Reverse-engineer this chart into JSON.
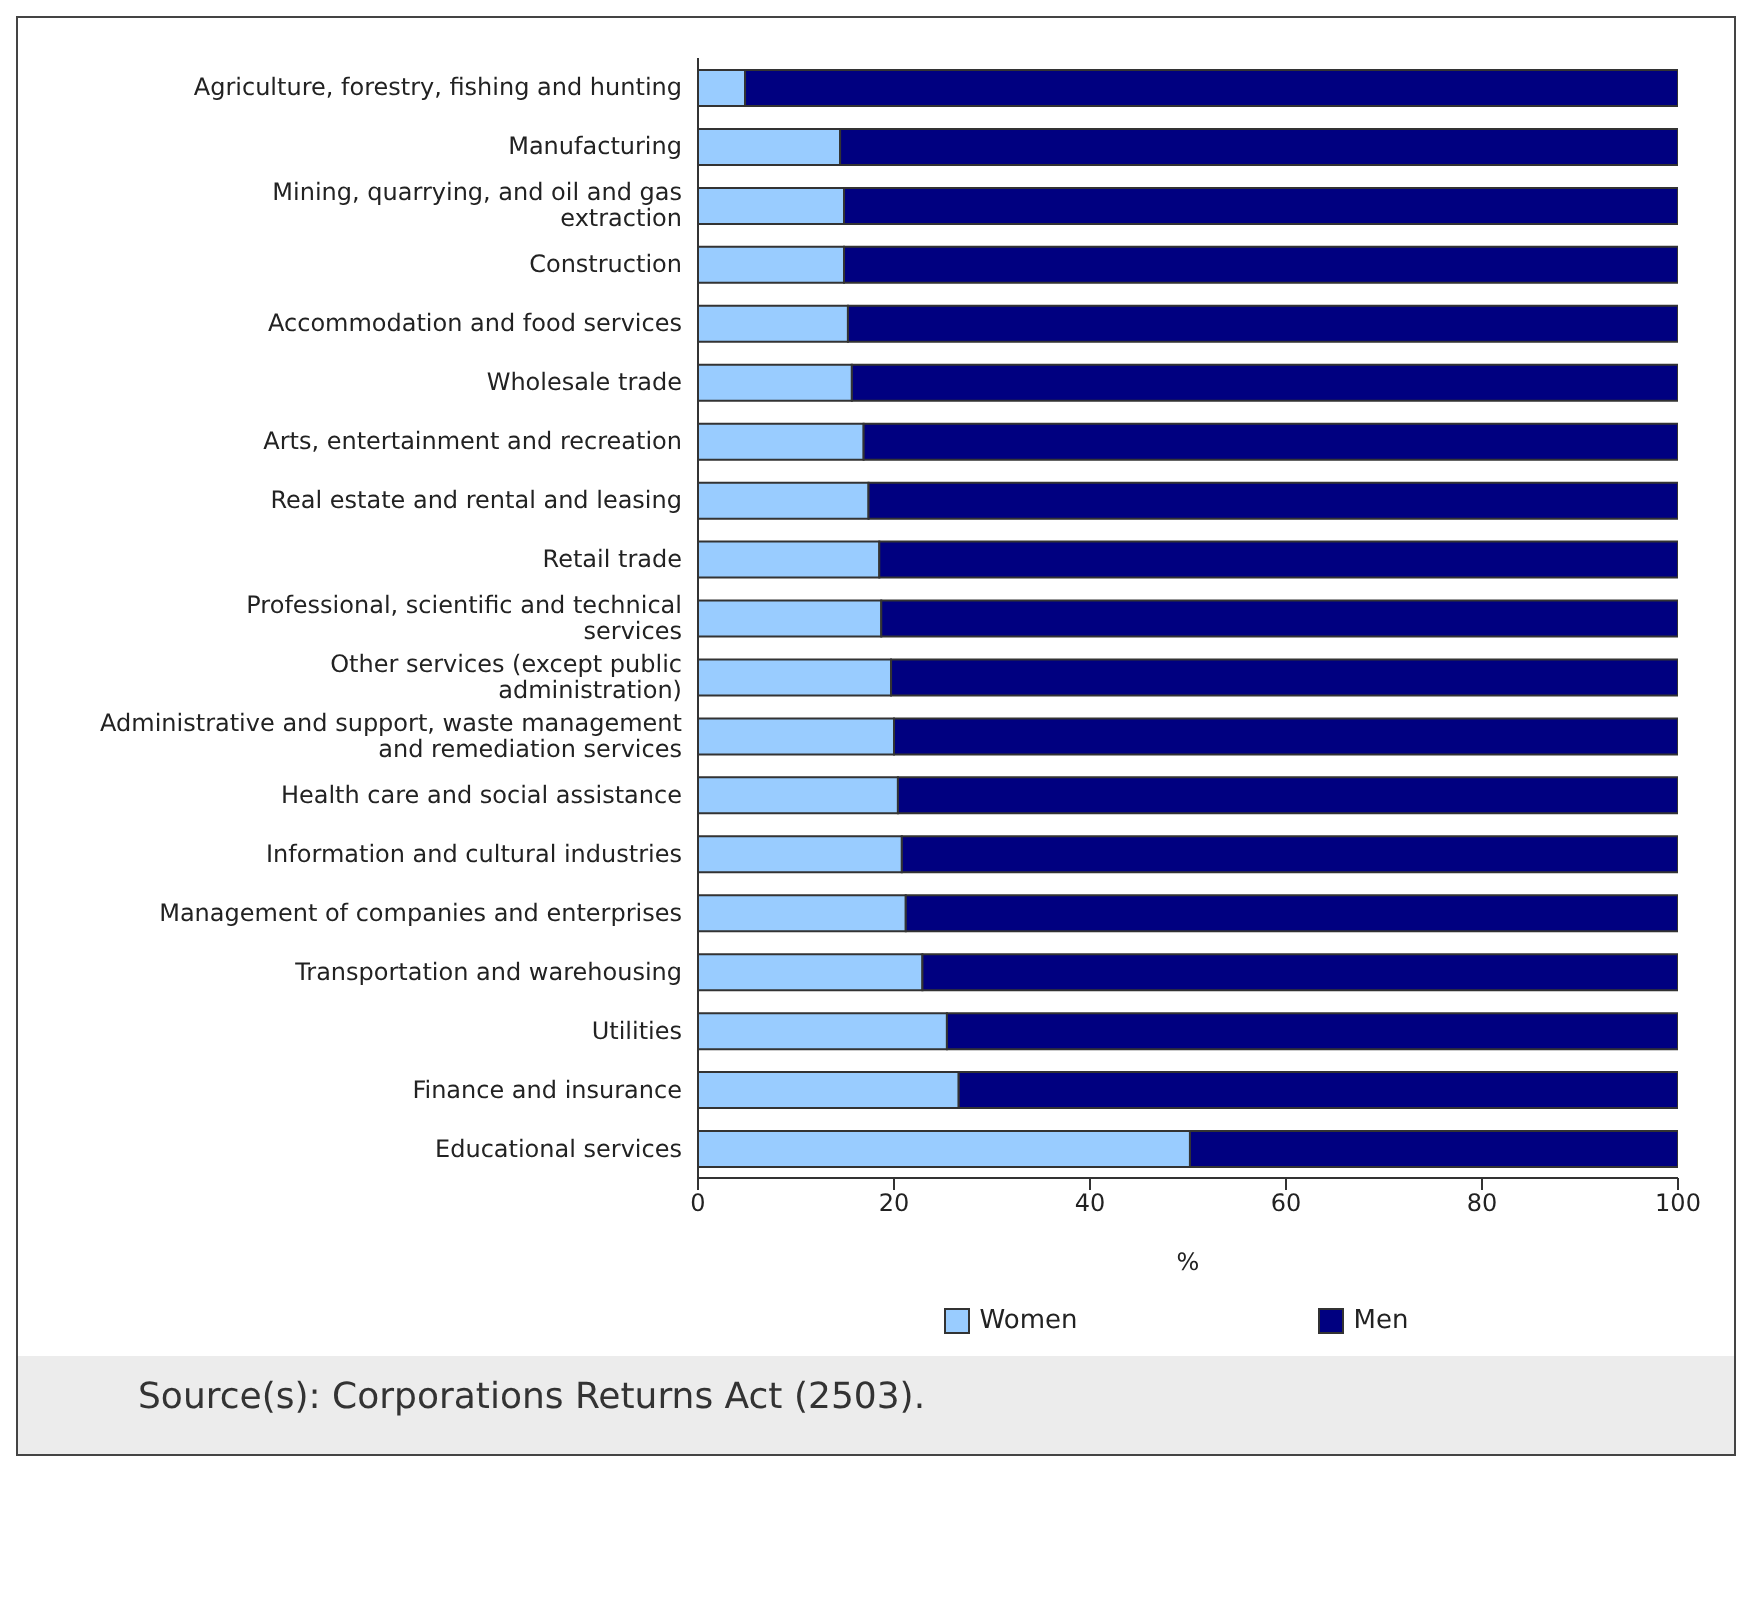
{
  "chart_data": {
    "type": "bar",
    "orientation": "horizontal",
    "stacked": true,
    "categories": [
      "Agriculture, forestry, fishing and hunting",
      "Manufacturing",
      "Mining, quarrying, and oil and gas extraction",
      "Construction",
      "Accommodation and food services",
      "Wholesale trade",
      "Arts, entertainment and recreation",
      "Real estate and rental and leasing",
      "Retail trade",
      "Professional, scientific and technical services",
      "Other services (except public administration)",
      "Administrative and support, waste management and remediation services",
      "Health care and social assistance",
      "Information and cultural industries",
      "Management of companies and enterprises",
      "Transportation and warehousing",
      "Utilities",
      "Finance and insurance",
      "Educational services"
    ],
    "series": [
      {
        "name": "Women",
        "color": "#99ccff",
        "values": [
          4.8,
          14.5,
          14.9,
          14.9,
          15.3,
          15.7,
          16.9,
          17.4,
          18.5,
          18.7,
          19.7,
          20.0,
          20.4,
          20.8,
          21.2,
          22.9,
          25.4,
          26.6,
          50.2
        ]
      },
      {
        "name": "Men",
        "color": "#000080",
        "values": [
          95.2,
          85.5,
          85.1,
          85.1,
          84.7,
          84.3,
          83.1,
          82.6,
          81.5,
          81.3,
          80.3,
          80.0,
          79.6,
          79.2,
          78.8,
          77.1,
          74.6,
          73.4,
          49.8
        ]
      }
    ],
    "xlim": [
      0,
      100
    ],
    "xticks": [
      0,
      20,
      40,
      60,
      80,
      100
    ],
    "xlabel": "%",
    "legend": "bottom",
    "grid": false,
    "annotations": [
      "Source(s): Corporations Returns Act (2503)."
    ]
  }
}
